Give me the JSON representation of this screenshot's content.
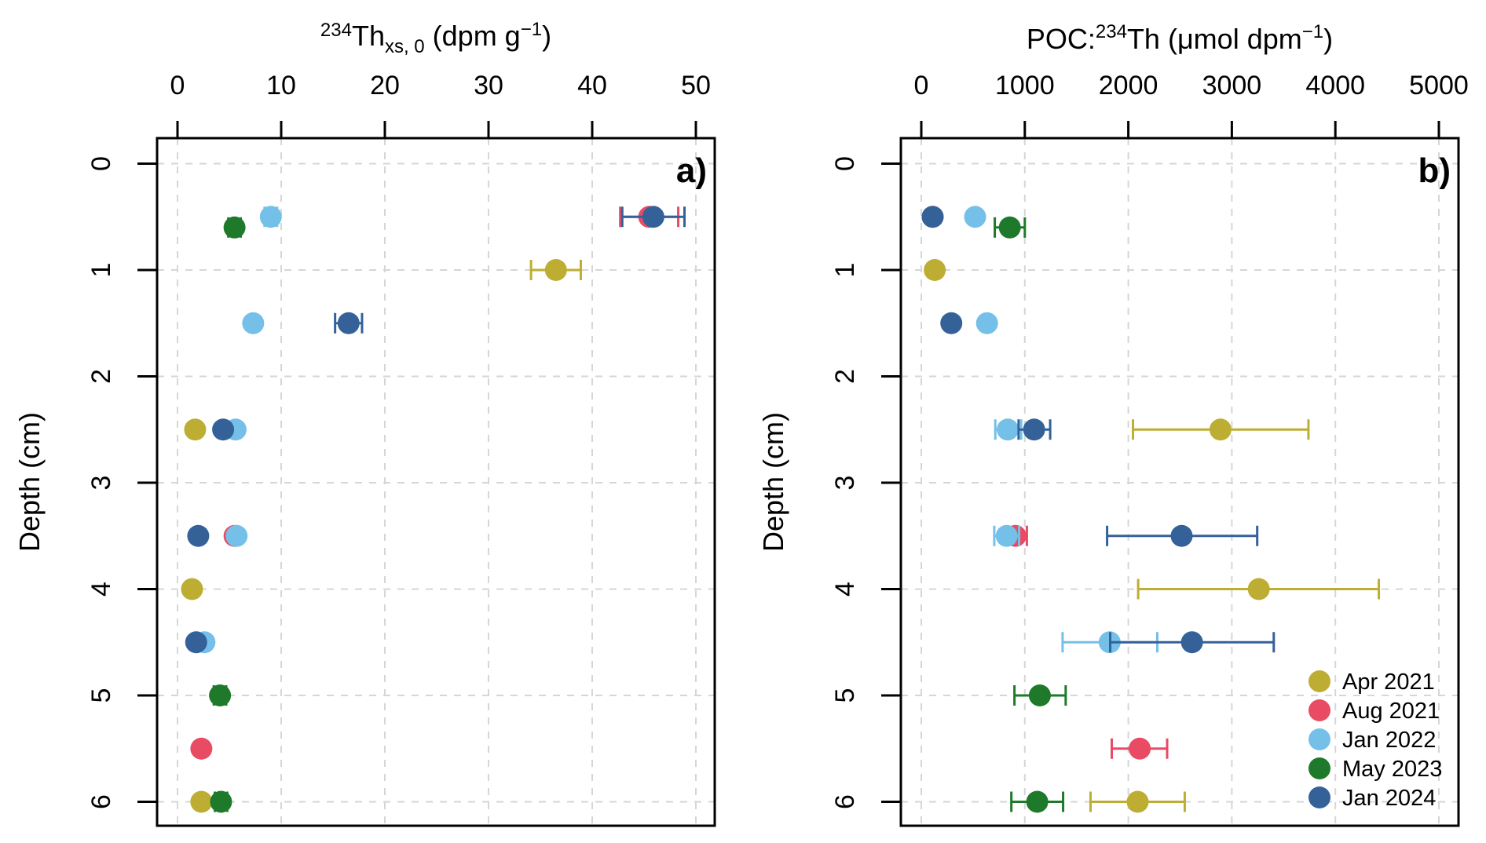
{
  "chart_data": [
    {
      "type": "scatter",
      "panel_label": "a)",
      "title": "",
      "xlabel": {
        "iso": "234",
        "base": "Th",
        "sub": "xs, 0",
        "units_pre": " (dpm g",
        "units_sup": "−1",
        "units_post": ")"
      },
      "ylabel": "Depth (cm)",
      "xlim": [
        0,
        50
      ],
      "ylim": [
        6,
        0
      ],
      "xticks": [
        0,
        10,
        20,
        30,
        40,
        50
      ],
      "yticks": [
        0,
        1,
        2,
        3,
        4,
        5,
        6
      ],
      "grid": true,
      "legend": null,
      "series": [
        {
          "name": "Apr 2021",
          "color": "#BDAE33",
          "points": [
            {
              "depth": 1.0,
              "value": 36.5,
              "err": [
                34.1,
                38.9
              ]
            },
            {
              "depth": 2.5,
              "value": 1.7
            },
            {
              "depth": 4.0,
              "value": 1.4
            },
            {
              "depth": 6.0,
              "value": 2.3
            }
          ]
        },
        {
          "name": "Aug 2021",
          "color": "#E94B64",
          "points": [
            {
              "depth": 0.5,
              "value": 45.5,
              "err": [
                42.7,
                48.3
              ]
            },
            {
              "depth": 3.5,
              "value": 5.5
            },
            {
              "depth": 5.5,
              "value": 2.3
            }
          ]
        },
        {
          "name": "Jan 2022",
          "color": "#74C0E8",
          "points": [
            {
              "depth": 0.5,
              "value": 9.0,
              "err": [
                8.4,
                9.6
              ]
            },
            {
              "depth": 1.5,
              "value": 7.3
            },
            {
              "depth": 2.5,
              "value": 5.6
            },
            {
              "depth": 3.5,
              "value": 5.7
            },
            {
              "depth": 4.5,
              "value": 2.6
            }
          ]
        },
        {
          "name": "May 2023",
          "color": "#1E7A2A",
          "points": [
            {
              "depth": 0.6,
              "value": 5.5,
              "err": [
                4.9,
                6.1
              ]
            },
            {
              "depth": 5.0,
              "value": 4.1,
              "err": [
                3.5,
                4.7
              ]
            },
            {
              "depth": 6.0,
              "value": 4.2,
              "err": [
                3.6,
                4.8
              ]
            }
          ]
        },
        {
          "name": "Jan 2024",
          "color": "#356199",
          "points": [
            {
              "depth": 0.5,
              "value": 45.9,
              "err": [
                42.9,
                48.9
              ]
            },
            {
              "depth": 1.5,
              "value": 16.5,
              "err": [
                15.2,
                17.8
              ]
            },
            {
              "depth": 2.5,
              "value": 4.4
            },
            {
              "depth": 3.5,
              "value": 2.0
            },
            {
              "depth": 4.5,
              "value": 1.8
            }
          ]
        }
      ]
    },
    {
      "type": "scatter",
      "panel_label": "b)",
      "title": "",
      "xlabel": {
        "pre": "POC:",
        "iso": "234",
        "base": "Th",
        "units_pre": " (μmol dpm",
        "units_sup": "−1",
        "units_post": ")"
      },
      "ylabel": "Depth (cm)",
      "xlim": [
        0,
        5000
      ],
      "ylim": [
        6,
        0
      ],
      "xticks": [
        0,
        1000,
        2000,
        3000,
        4000,
        5000
      ],
      "yticks": [
        0,
        1,
        2,
        3,
        4,
        5,
        6
      ],
      "grid": true,
      "legend": "bottom-right",
      "series": [
        {
          "name": "Apr 2021",
          "color": "#BDAE33",
          "points": [
            {
              "depth": 1.0,
              "value": 130
            },
            {
              "depth": 2.5,
              "value": 2890,
              "err": [
                2045,
                3740
              ]
            },
            {
              "depth": 4.0,
              "value": 3260,
              "err": [
                2095,
                4420
              ]
            },
            {
              "depth": 6.0,
              "value": 2090,
              "err": [
                1635,
                2545
              ]
            }
          ]
        },
        {
          "name": "Aug 2021",
          "color": "#E94B64",
          "points": [
            {
              "depth": 0.5,
              "value": 110
            },
            {
              "depth": 3.5,
              "value": 910,
              "err": [
                800,
                1020
              ]
            },
            {
              "depth": 5.5,
              "value": 2110,
              "err": [
                1840,
                2375
              ]
            }
          ]
        },
        {
          "name": "Jan 2022",
          "color": "#74C0E8",
          "points": [
            {
              "depth": 0.5,
              "value": 520
            },
            {
              "depth": 1.5,
              "value": 635
            },
            {
              "depth": 2.5,
              "value": 835,
              "err": [
                715,
                965
              ]
            },
            {
              "depth": 3.5,
              "value": 825,
              "err": [
                705,
                945
              ]
            },
            {
              "depth": 4.5,
              "value": 1820,
              "err": [
                1365,
                2280
              ]
            }
          ]
        },
        {
          "name": "May 2023",
          "color": "#1E7A2A",
          "points": [
            {
              "depth": 0.6,
              "value": 855,
              "err": [
                710,
                1000
              ]
            },
            {
              "depth": 5.0,
              "value": 1145,
              "err": [
                900,
                1395
              ]
            },
            {
              "depth": 6.0,
              "value": 1120,
              "err": [
                870,
                1370
              ]
            }
          ]
        },
        {
          "name": "Jan 2024",
          "color": "#356199",
          "points": [
            {
              "depth": 0.5,
              "value": 110
            },
            {
              "depth": 1.5,
              "value": 290
            },
            {
              "depth": 2.5,
              "value": 1090,
              "err": [
                940,
                1245
              ]
            },
            {
              "depth": 3.5,
              "value": 2515,
              "err": [
                1795,
                3245
              ]
            },
            {
              "depth": 4.5,
              "value": 2615,
              "err": [
                1825,
                3405
              ]
            }
          ]
        }
      ]
    }
  ]
}
